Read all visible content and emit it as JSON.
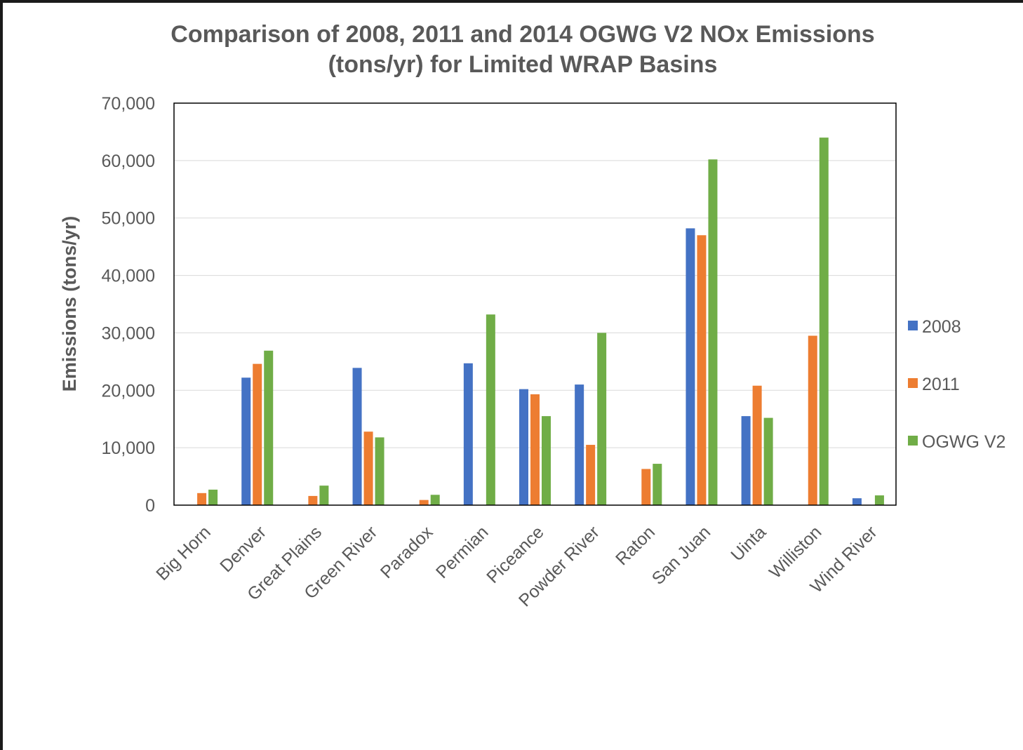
{
  "chart_data": {
    "type": "bar",
    "title_lines": [
      "Comparison of 2008, 2011 and 2014 OGWG V2 NOx Emissions",
      "(tons/yr) for Limited WRAP Basins"
    ],
    "xlabel": "",
    "ylabel": "Emissions  (tons/yr)",
    "ylim": [
      0,
      70000
    ],
    "yticks": [
      0,
      10000,
      20000,
      30000,
      40000,
      50000,
      60000,
      70000
    ],
    "ytick_labels": [
      "0",
      "10,000",
      "20,000",
      "30,000",
      "40,000",
      "50,000",
      "60,000",
      "70,000"
    ],
    "categories": [
      "Big Horn",
      "Denver",
      "Great Plains",
      "Green River",
      "Paradox",
      "Permian",
      "Piceance",
      "Powder River",
      "Raton",
      "San Juan",
      "Uinta",
      "Williston",
      "Wind River"
    ],
    "series": [
      {
        "name": "2008",
        "color": "#4472C4",
        "values": [
          0,
          22200,
          0,
          23900,
          0,
          24700,
          20200,
          21000,
          0,
          48200,
          15500,
          0,
          1200
        ]
      },
      {
        "name": "2011",
        "color": "#ED7D31",
        "values": [
          2100,
          24600,
          1600,
          12800,
          900,
          0,
          19300,
          10500,
          6300,
          47000,
          20800,
          29500,
          0
        ]
      },
      {
        "name": "OGWG V2",
        "color": "#70AD47",
        "values": [
          2700,
          26900,
          3400,
          11800,
          1800,
          33200,
          15500,
          30000,
          7200,
          60200,
          15200,
          64000,
          1700
        ]
      }
    ],
    "grid": true,
    "legend_position": "right"
  }
}
